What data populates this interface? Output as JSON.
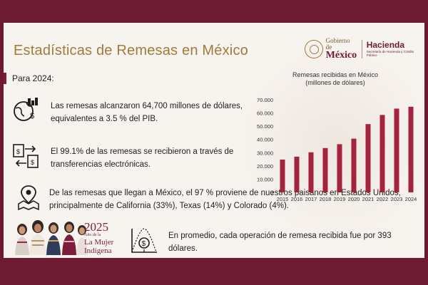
{
  "slide": {
    "title": "Estadísticas de Remesas en México",
    "logo": {
      "gobierno_line1": "Gobierno de",
      "gobierno_line2": "México",
      "hacienda_line1": "Hacienda",
      "hacienda_line2": "Secretaría de Hacienda y Crédito Público"
    },
    "intro": "Para 2024:",
    "points": [
      "Las remesas alcanzaron 64,700 millones de dólares, equivalentes a 3.5 % del PIB.",
      "El 99.1% de las remesas se recibieron a través de transferencias electrónicas.",
      "De las remesas que llegan a México, el 97 % proviene de nuestros paisanos en Estados Unidos, principalmente de California (33%), Texas (14%) y Colorado (4%).",
      "En promedio, cada operación de remesa recibida fue por 393 dólares."
    ],
    "badge": {
      "year": "2025",
      "line1": "Año de la",
      "line2": "La Mujer",
      "line3": "Indígena"
    }
  },
  "colors": {
    "maroon": "#6e1a32",
    "bar": "#a4243f",
    "gold": "#a07b3a"
  },
  "icons": [
    "globe-money-icon",
    "electronic-transfer-icon",
    "map-pin-icon",
    "money-bag-chart-icon"
  ],
  "chart_data": {
    "type": "bar",
    "title": "Remesas recibidas en México",
    "subtitle": "(millones de dólares)",
    "categories": [
      "2015",
      "2016",
      "2017",
      "2018",
      "2019",
      "2020",
      "2021",
      "2022",
      "2023",
      "2024"
    ],
    "values": [
      24800,
      27000,
      30300,
      33500,
      36400,
      40600,
      51600,
      58500,
      63300,
      64700
    ],
    "ylim": [
      0,
      70000
    ],
    "yticks": [
      "0",
      "10.000",
      "20.000",
      "30.000",
      "40.000",
      "50.000",
      "60.000",
      "70.000"
    ],
    "grid": false,
    "legend": "none"
  }
}
